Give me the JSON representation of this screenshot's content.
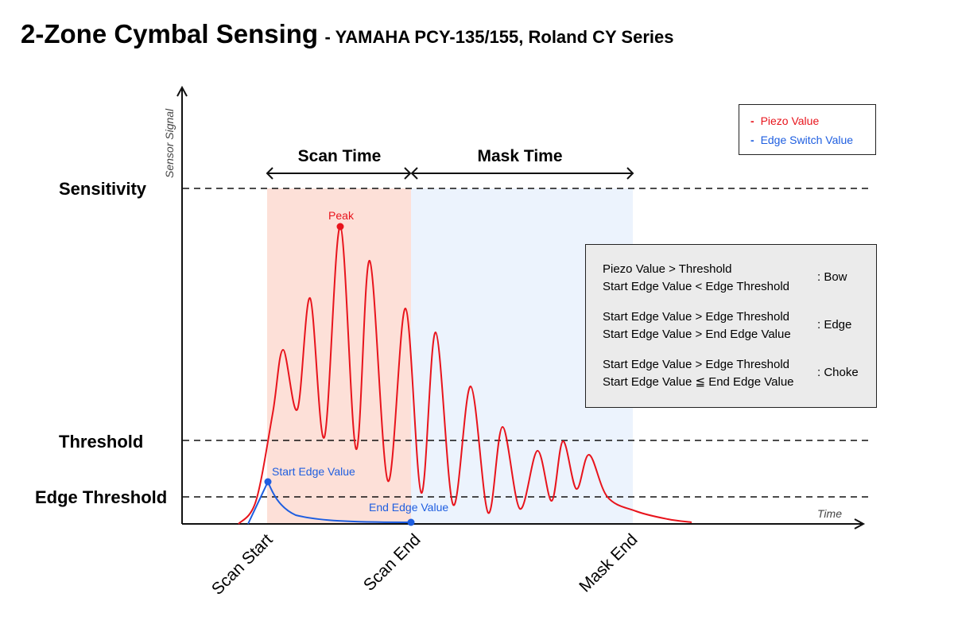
{
  "title": {
    "main": "2-Zone Cymbal Sensing",
    "subtitle": "- YAMAHA PCY-135/155, Roland CY Series"
  },
  "axes": {
    "y_label": "Sensor Signal",
    "x_label": "Time"
  },
  "levels": {
    "sensitivity": "Sensitivity",
    "threshold": "Threshold",
    "edge_threshold": "Edge Threshold"
  },
  "time_markers": {
    "scan_start": "Scan Start",
    "scan_end": "Scan End",
    "mask_end": "Mask End"
  },
  "periods": {
    "scan_time": "Scan Time",
    "mask_time": "Mask Time"
  },
  "annotations": {
    "peak": "Peak",
    "start_edge_value": "Start Edge Value",
    "end_edge_value": "End Edge Value"
  },
  "legend": {
    "items": [
      {
        "label": "Piezo Value",
        "color": "#e8141c"
      },
      {
        "label": "Edge Switch Value",
        "color": "#1e5ee0"
      }
    ]
  },
  "rules": [
    {
      "lines": [
        "Piezo Value > Threshold",
        "Start Edge Value < Edge Threshold"
      ],
      "result": ":  Bow"
    },
    {
      "lines": [
        "Start Edge Value > Edge Threshold",
        "Start Edge Value > End Edge Value"
      ],
      "result": ":  Edge"
    },
    {
      "lines": [
        "Start Edge Value > Edge Threshold",
        "Start Edge Value ≦ End Edge Value"
      ],
      "result": ":  Choke"
    }
  ],
  "colors": {
    "piezo": "#e8141c",
    "edge_switch": "#1e5ee0",
    "scan_shade": "#fde0d8",
    "mask_shade": "#ecf3fd",
    "rules_bg": "#ebebeb"
  }
}
